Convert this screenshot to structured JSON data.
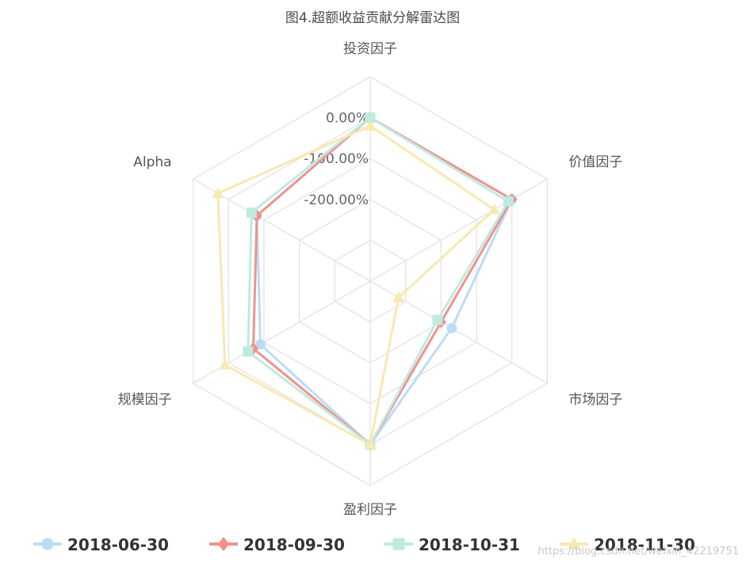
{
  "chart_data": {
    "type": "radar",
    "title": "图4.超额收益贡献分解雷达图",
    "axes": [
      "投资因子",
      "价值因子",
      "市场因子",
      "盈利因子",
      "规模因子",
      "Alpha"
    ],
    "ticks": [
      "0.00%",
      "-100.00%",
      "-200.00%"
    ],
    "range": [
      -400,
      100
    ],
    "series": [
      {
        "name": "2018-06-30",
        "color": "#bcdcf5",
        "marker": "circle",
        "values": [
          0,
          0,
          -170,
          0,
          -90,
          -80
        ]
      },
      {
        "name": "2018-09-30",
        "color": "#f0928c",
        "marker": "diamond",
        "values": [
          0,
          0,
          -200,
          0,
          -70,
          -80
        ]
      },
      {
        "name": "2018-10-31",
        "color": "#bfeadf",
        "marker": "square",
        "values": [
          0,
          -10,
          -210,
          0,
          -55,
          -65
        ]
      },
      {
        "name": "2018-11-30",
        "color": "#f7e9b0",
        "marker": "triangle",
        "values": [
          -20,
          -50,
          -320,
          0,
          10,
          30
        ]
      }
    ],
    "legend_position": "bottom",
    "grid": true
  },
  "watermark": "https://blog.csdn.net/weixin_42219751"
}
